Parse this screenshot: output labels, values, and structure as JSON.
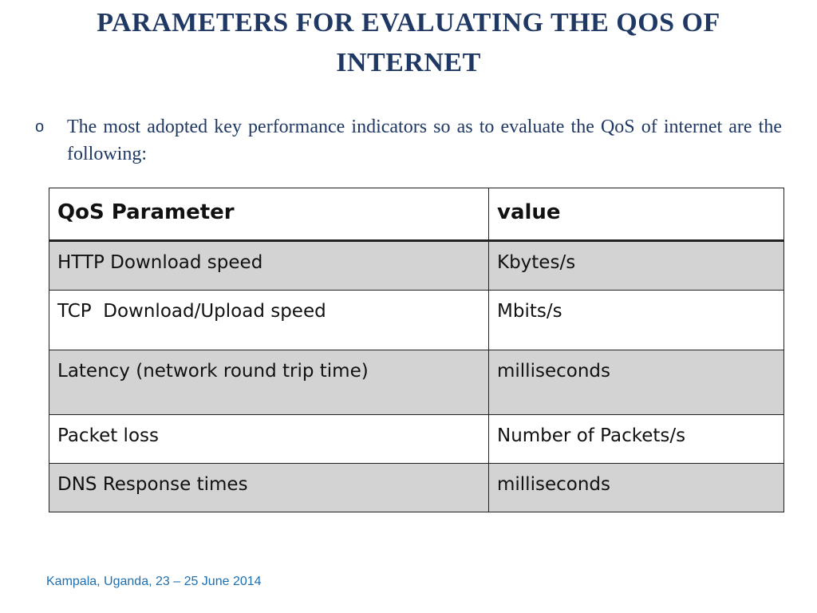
{
  "title": "PARAMETERS FOR EVALUATING THE QOS OF INTERNET",
  "bullet": {
    "marker": "o",
    "text": "The most adopted key performance indicators so as to evaluate the QoS of internet are the following:"
  },
  "table": {
    "headers": [
      "QoS Parameter",
      "value"
    ],
    "rows": [
      [
        "HTTP Download speed",
        "Kbytes/s"
      ],
      [
        "TCP  Download/Upload speed",
        "Mbits/s"
      ],
      [
        "Latency (network round trip time)",
        "milliseconds"
      ],
      [
        "Packet loss",
        "Number of Packets/s"
      ],
      [
        "DNS Response times",
        "milliseconds"
      ]
    ]
  },
  "footer": "Kampala, Uganda, 23 – 25 June 2014",
  "colors": {
    "title": "#1f3864",
    "footer": "#1f6fb0",
    "shaded_row": "#d3d3d3"
  }
}
